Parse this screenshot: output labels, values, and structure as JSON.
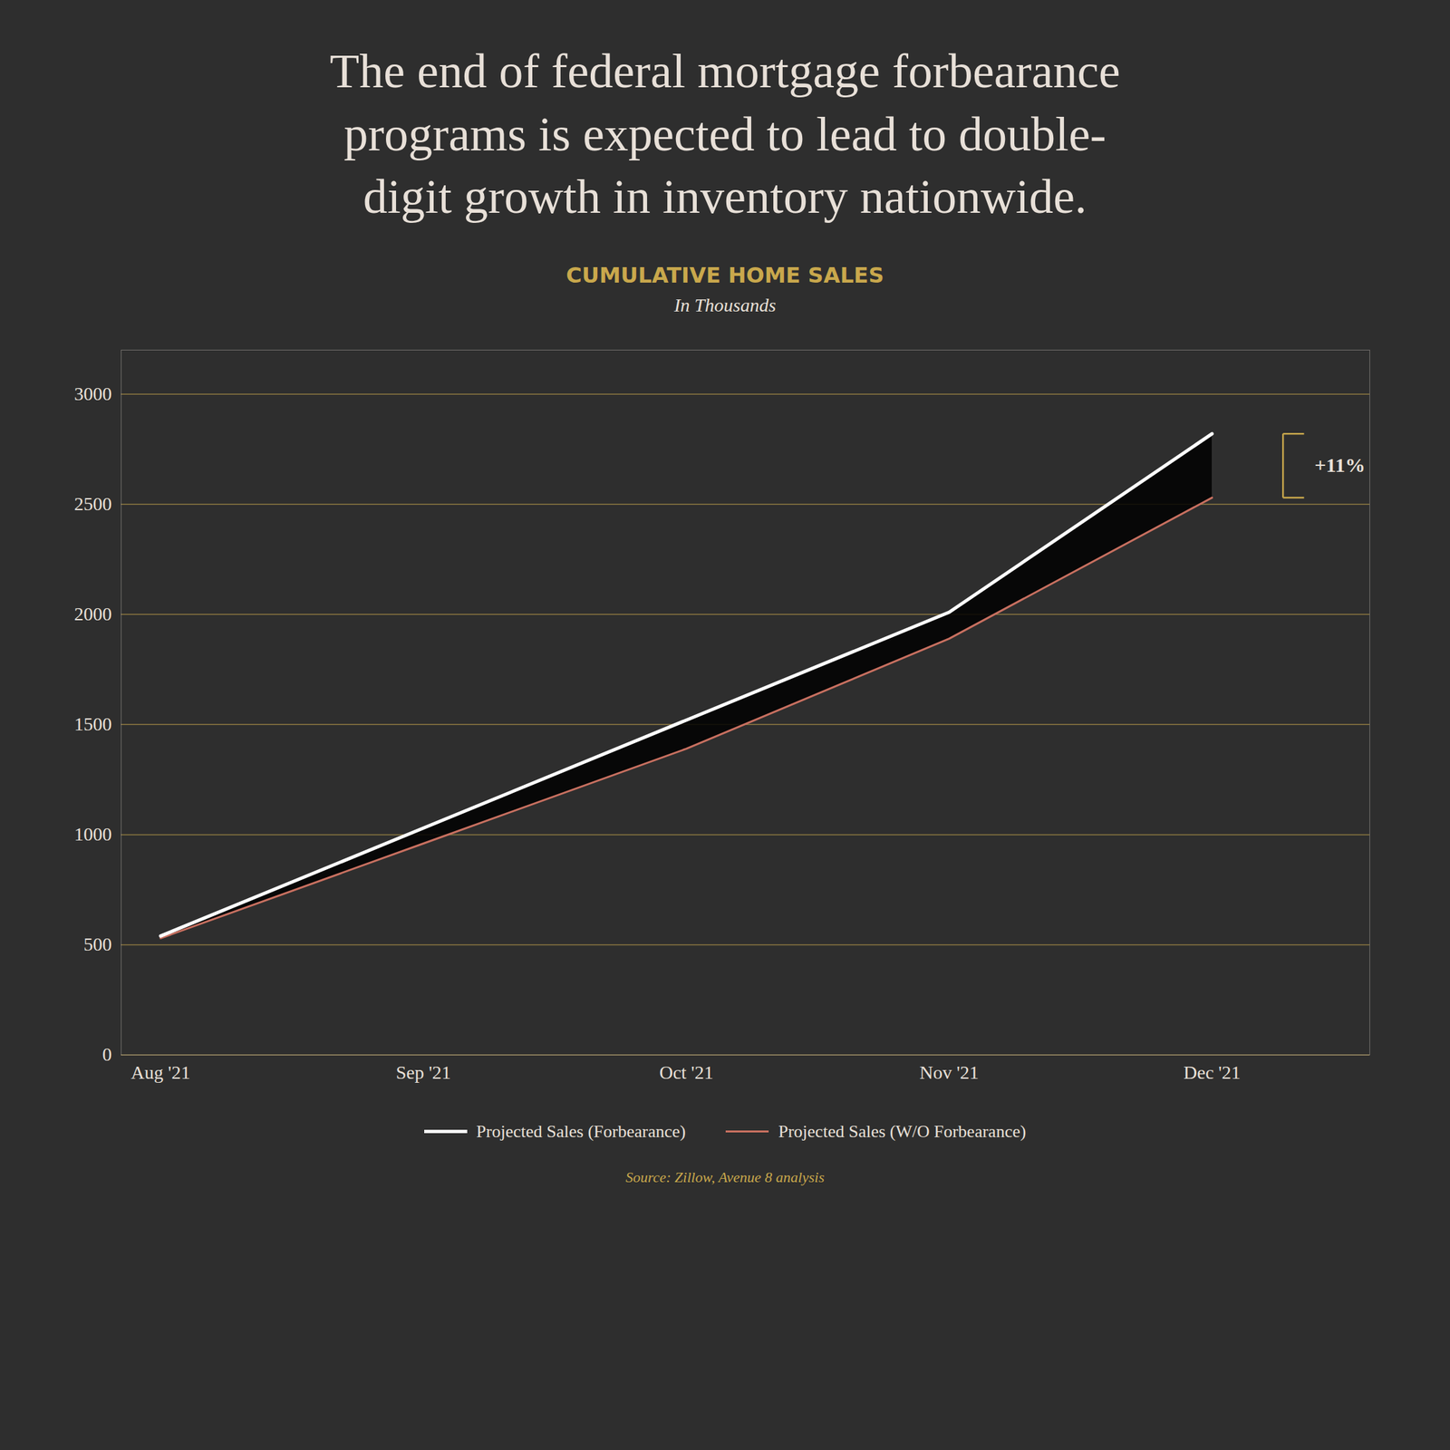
{
  "chart_data": {
    "type": "line",
    "title": "The end of federal mortgage forbearance\nprograms is expected to lead to double-\ndigit growth in inventory nationwide.",
    "subtitle": "CUMULATIVE HOME SALES",
    "ylabel": "In Thousands",
    "source": "Source: Zillow, Avenue 8 analysis",
    "categories": [
      "Aug '21",
      "Sep '21",
      "Oct '21",
      "Nov '21",
      "Dec '21"
    ],
    "series": [
      {
        "name": "Projected Sales (Forbearance)",
        "color": "#ffffff",
        "values": [
          540,
          1030,
          1520,
          2010,
          2820
        ]
      },
      {
        "name": "Projected Sales (W/O Forbearance)",
        "color": "#c87060",
        "values": [
          530,
          960,
          1390,
          1890,
          2530
        ]
      }
    ],
    "ylim": [
      0,
      3200
    ],
    "yticks": [
      0,
      500,
      1000,
      1500,
      2000,
      2500,
      3000
    ],
    "grid": true,
    "legend": "bottom",
    "annotations": [
      {
        "text": "+11%"
      }
    ]
  }
}
